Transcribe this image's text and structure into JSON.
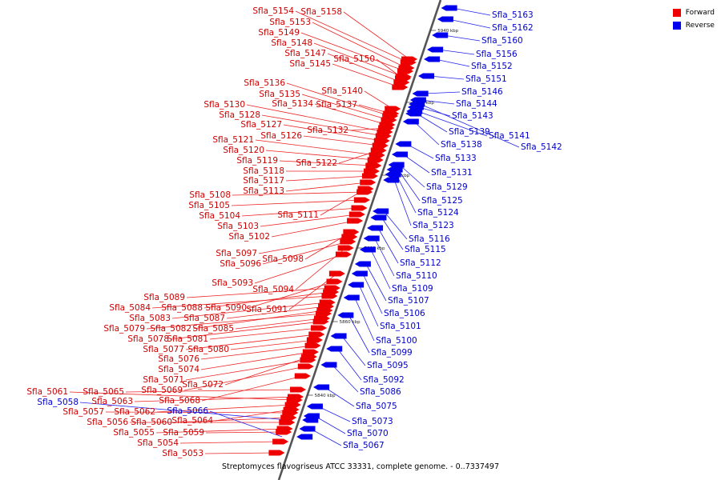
{
  "legend": {
    "forward_label": "Forward",
    "reverse_label": "Reverse",
    "forward_color": "#ee0000",
    "reverse_color": "#0000ee"
  },
  "caption": "Streptomyces flavogriseus ATCC 33331, complete genome. - 0..7337497",
  "axis": {
    "tick_labels": [
      "5940 kbp",
      "5920 kbp",
      "5900 kbp",
      "5880 kbp",
      "5860 kbp",
      "5840 kbp"
    ]
  },
  "forward_genes": [
    "Sfla_5154",
    "Sfla_5158",
    "Sfla_5153",
    "Sfla_5149",
    "Sfla_5148",
    "Sfla_5147",
    "Sfla_5150",
    "Sfla_5145",
    "Sfla_5136",
    "Sfla_5140",
    "Sfla_5135",
    "Sfla_5134",
    "Sfla_5137",
    "Sfla_5130",
    "Sfla_5128",
    "Sfla_5127",
    "Sfla_5132",
    "Sfla_5126",
    "Sfla_5121",
    "Sfla_5120",
    "Sfla_5119",
    "Sfla_5122",
    "Sfla_5118",
    "Sfla_5117",
    "Sfla_5113",
    "Sfla_5108",
    "Sfla_5105",
    "Sfla_5104",
    "Sfla_5111",
    "Sfla_5103",
    "Sfla_5102",
    "Sfla_5097",
    "Sfla_5098",
    "Sfla_5096",
    "Sfla_5093",
    "Sfla_5094",
    "Sfla_5089",
    "Sfla_5084",
    "Sfla_5088",
    "Sfla_5090",
    "Sfla_5091",
    "Sfla_5083",
    "Sfla_5087",
    "Sfla_5079",
    "Sfla_5082",
    "Sfla_5085",
    "Sfla_5078",
    "Sfla_5081",
    "Sfla_5077",
    "Sfla_5080",
    "Sfla_5076",
    "Sfla_5074",
    "Sfla_5071",
    "Sfla_5072",
    "Sfla_5069",
    "Sfla_5061",
    "Sfla_5065",
    "Sfla_5063",
    "Sfla_5068",
    "Sfla_5057",
    "Sfla_5062",
    "Sfla_5056",
    "Sfla_5060",
    "Sfla_5064",
    "Sfla_5055",
    "Sfla_5059",
    "Sfla_5054",
    "Sfla_5053"
  ],
  "reverse_genes": [
    "Sfla_5163",
    "Sfla_5162",
    "Sfla_5160",
    "Sfla_5156",
    "Sfla_5152",
    "Sfla_5151",
    "Sfla_5146",
    "Sfla_5144",
    "Sfla_5143",
    "Sfla_5139",
    "Sfla_5141",
    "Sfla_5142",
    "Sfla_5138",
    "Sfla_5133",
    "Sfla_5131",
    "Sfla_5129",
    "Sfla_5125",
    "Sfla_5124",
    "Sfla_5123",
    "Sfla_5116",
    "Sfla_5115",
    "Sfla_5112",
    "Sfla_5110",
    "Sfla_5109",
    "Sfla_5107",
    "Sfla_5106",
    "Sfla_5101",
    "Sfla_5100",
    "Sfla_5099",
    "Sfla_5095",
    "Sfla_5092",
    "Sfla_5086",
    "Sfla_5075",
    "Sfla_5073",
    "Sfla_5070",
    "Sfla_5067",
    "Sfla_5058",
    "Sfla_5066"
  ]
}
